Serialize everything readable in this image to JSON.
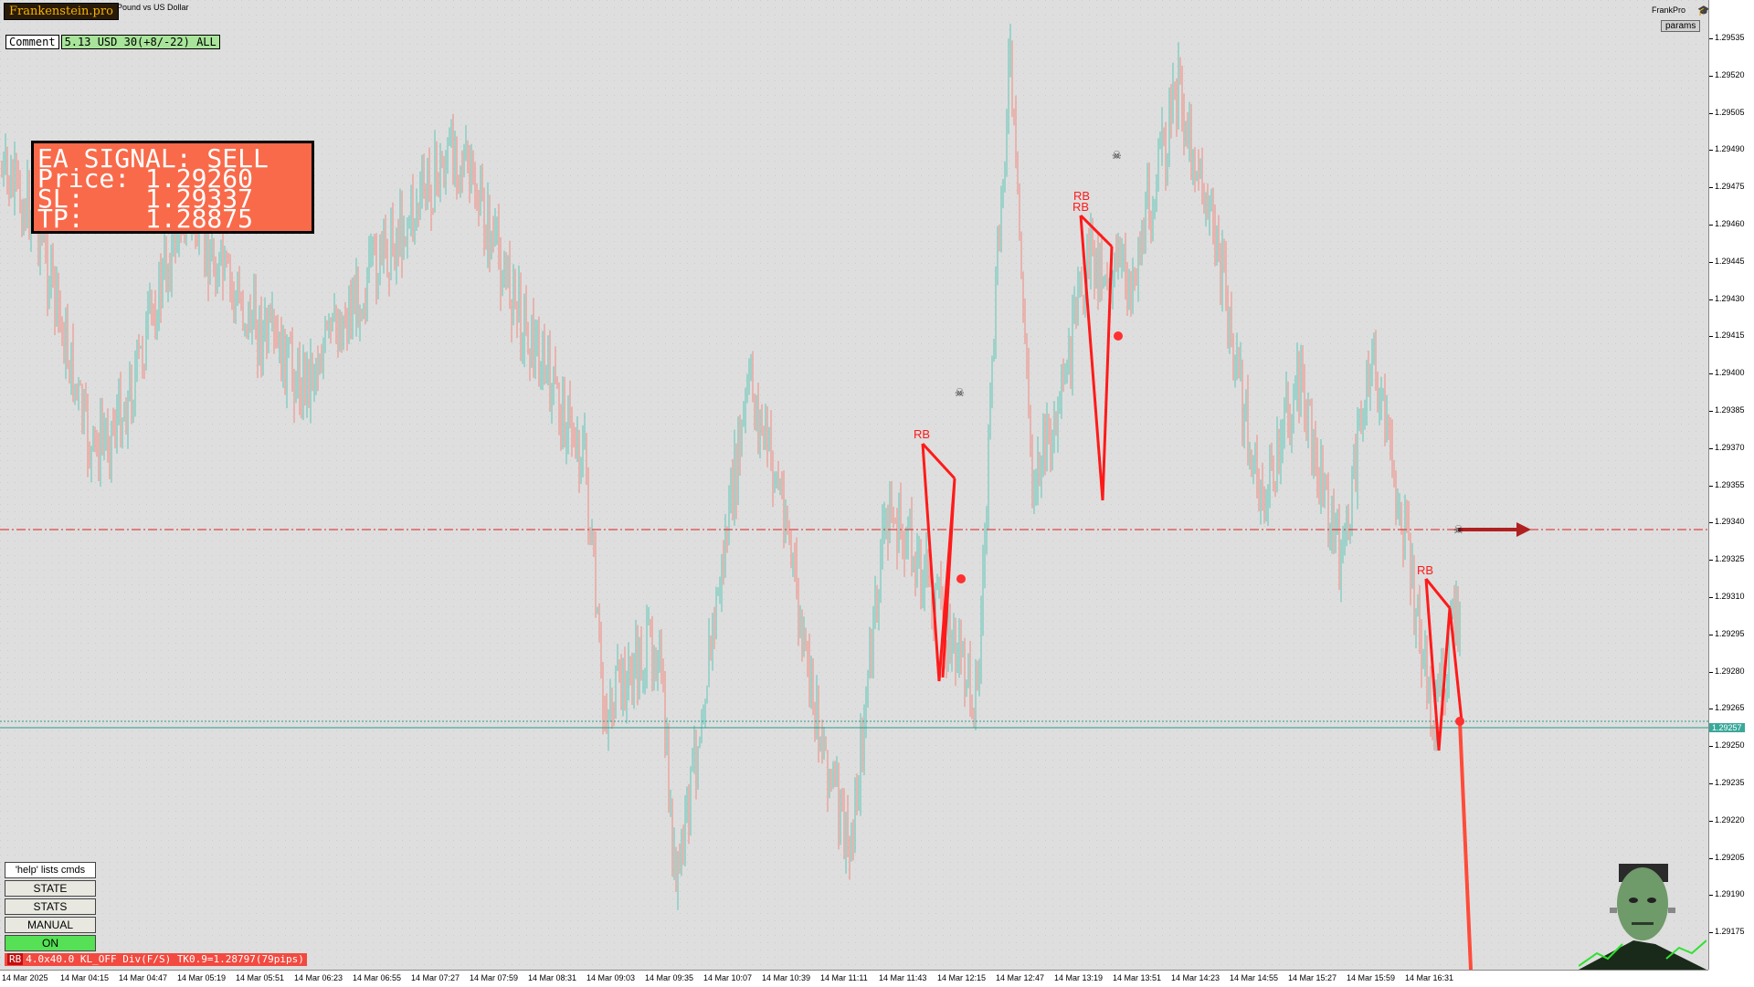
{
  "header": {
    "logo_text": "Frankenstein.pro",
    "symbol_title": "Pound vs US Dollar",
    "brand_right": "FrankPro",
    "params_label": "params"
  },
  "comment": {
    "label": "Comment",
    "value": "5.13 USD 30(+8/-22) ALL"
  },
  "signal": {
    "line1": "EA SIGNAL: SELL",
    "line2": "Price: 1.29260",
    "line3": "SL:    1.29337",
    "line4": "TP:    1.28875"
  },
  "buttons": {
    "help": "'help' lists cmds",
    "state": "STATE",
    "stats": "STATS",
    "manual": "MANUAL",
    "on": "ON"
  },
  "status_strip": {
    "tag": "RB",
    "text": "4.0x40.0 KL_OFF Div(F/S) TK0.9=1.28797(79pips)"
  },
  "current_price": "1.29257",
  "price_axis": [
    "1.29535",
    "1.29520",
    "1.29505",
    "1.29490",
    "1.29475",
    "1.29460",
    "1.29445",
    "1.29430",
    "1.29415",
    "1.29400",
    "1.29385",
    "1.29370",
    "1.29355",
    "1.29340",
    "1.29325",
    "1.29310",
    "1.29295",
    "1.29280",
    "1.29265",
    "1.29250",
    "1.29235",
    "1.29220",
    "1.29205",
    "1.29190",
    "1.29175"
  ],
  "time_axis": [
    "14 Mar 2025",
    "14 Mar 04:15",
    "14 Mar 04:47",
    "14 Mar 05:19",
    "14 Mar 05:51",
    "14 Mar 06:23",
    "14 Mar 06:55",
    "14 Mar 07:27",
    "14 Mar 07:59",
    "14 Mar 08:31",
    "14 Mar 09:03",
    "14 Mar 09:35",
    "14 Mar 10:07",
    "14 Mar 10:39",
    "14 Mar 11:11",
    "14 Mar 11:43",
    "14 Mar 12:15",
    "14 Mar 12:47",
    "14 Mar 13:19",
    "14 Mar 13:51",
    "14 Mar 14:23",
    "14 Mar 14:55",
    "14 Mar 15:27",
    "14 Mar 15:59",
    "14 Mar 16:31"
  ],
  "chart_annotations": {
    "rb_label": "RB"
  },
  "colors": {
    "up_candle": "#5fc6b6",
    "down_candle": "#f08a80",
    "pattern": "#ff1a1a",
    "sl_line": "#e02020",
    "price_line": "#2a9a8a",
    "signal_bg": "#f96a4a"
  }
}
